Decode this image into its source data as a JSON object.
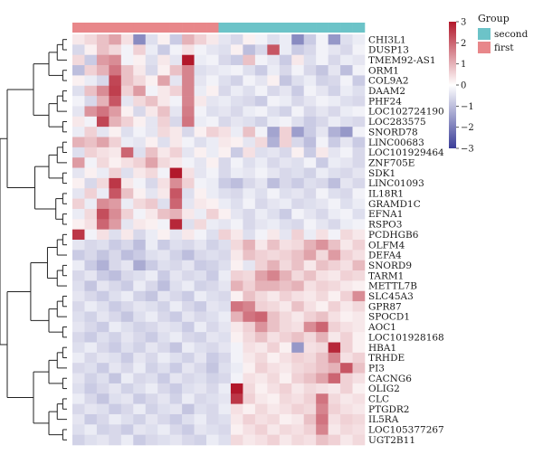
{
  "chart_data": {
    "type": "heatmap",
    "title": "",
    "legend_title": "Group",
    "groups": [
      {
        "name": "second",
        "color": "#6cc3c8"
      },
      {
        "name": "first",
        "color": "#e8878a"
      }
    ],
    "column_groups": [
      "first",
      "first",
      "first",
      "first",
      "first",
      "first",
      "first",
      "first",
      "first",
      "first",
      "first",
      "first",
      "second",
      "second",
      "second",
      "second",
      "second",
      "second",
      "second",
      "second",
      "second",
      "second",
      "second",
      "second"
    ],
    "scale": {
      "min": -3,
      "max": 3,
      "ticks": [
        3,
        2,
        1,
        0,
        -1,
        -2,
        -3
      ],
      "low_color": "#3a3d98",
      "mid_color": "#ffffff",
      "high_color": "#b2182b"
    },
    "rows": [
      "CHI3L1",
      "DUSP13",
      "TMEM92-AS1",
      "ORM1",
      "COL9A2",
      "DAAM2",
      "PHF24",
      "LOC102724190",
      "LOC283575",
      "SNORD78",
      "LINC00683",
      "LOC101929464",
      "ZNF705E",
      "SDK1",
      "LINC01093",
      "IL18R1",
      "GRAMD1C",
      "EFNA1",
      "RSPO3",
      "PCDHGB6",
      "OLFM4",
      "DEFA4",
      "SNORD9",
      "TARM1",
      "METTL7B",
      "SLC45A3",
      "GPR87",
      "SPOCD1",
      "AOC1",
      "LOC101928168",
      "HBA1",
      "TRHDE",
      "PI3",
      "CACNG6",
      "OLIG2",
      "CLC",
      "PTGDR2",
      "IL5RA",
      "LOC105377267",
      "UGT2B11"
    ],
    "values": [
      [
        0.3,
        0.5,
        0.8,
        1.2,
        0.4,
        -1.8,
        -0.5,
        0.2,
        -0.8,
        1.0,
        0.6,
        0.3,
        -0.4,
        -0.6,
        0.2,
        -0.2,
        -0.5,
        -0.3,
        -1.8,
        -0.8,
        -0.2,
        -1.6,
        -0.5,
        -0.3
      ],
      [
        -0.6,
        0.2,
        0.8,
        0.5,
        -0.2,
        0.6,
        -0.3,
        -0.8,
        -0.2,
        0.4,
        -0.2,
        -0.4,
        -0.5,
        0.2,
        -1.0,
        -0.6,
        2.2,
        -0.3,
        -0.8,
        -0.6,
        -0.2,
        -0.4,
        -0.6,
        -0.2
      ],
      [
        0.5,
        -0.8,
        1.3,
        1.5,
        -0.2,
        0.2,
        -0.5,
        0.3,
        -0.4,
        3.0,
        -0.3,
        -0.2,
        -0.6,
        -0.8,
        0.8,
        -0.2,
        -0.4,
        -0.8,
        0.3,
        -0.5,
        -0.2,
        -0.6,
        -0.3,
        -0.4
      ],
      [
        -1.0,
        0.6,
        1.0,
        1.8,
        0.8,
        0.3,
        -0.6,
        0.2,
        0.8,
        1.6,
        -0.5,
        -0.4,
        -0.3,
        -0.2,
        -0.5,
        -0.8,
        -0.3,
        -0.6,
        -0.2,
        -0.6,
        -0.9,
        -0.4,
        -1.0,
        -0.2
      ],
      [
        0.2,
        -0.3,
        -0.6,
        2.4,
        0.8,
        0.5,
        0.2,
        1.2,
        -0.4,
        1.6,
        -0.4,
        -0.2,
        -0.5,
        -0.7,
        -0.2,
        -0.4,
        0.2,
        -0.9,
        -0.5,
        -0.3,
        -0.7,
        -0.6,
        -0.2,
        -0.8
      ],
      [
        -0.5,
        0.8,
        1.5,
        2.5,
        0.6,
        1.3,
        -0.2,
        0.3,
        0.6,
        1.6,
        -0.3,
        0.2,
        -0.6,
        -0.3,
        -0.5,
        -0.2,
        -0.6,
        -0.4,
        -0.8,
        -0.2,
        -0.4,
        -0.7,
        -0.3,
        -0.5
      ],
      [
        -0.2,
        -0.6,
        1.0,
        2.2,
        -0.4,
        0.5,
        0.8,
        0.3,
        -0.2,
        1.6,
        0.3,
        -0.4,
        -0.3,
        -0.5,
        -0.6,
        -0.8,
        -0.2,
        -0.3,
        -0.6,
        -0.4,
        -0.2,
        -0.3,
        -0.5,
        -0.6
      ],
      [
        -0.4,
        1.4,
        1.8,
        1.3,
        0.2,
        -0.6,
        0.3,
        0.8,
        -0.4,
        1.7,
        -0.2,
        -0.5,
        -0.4,
        -0.6,
        -0.3,
        -0.2,
        -0.5,
        -0.7,
        -0.2,
        -0.6,
        -0.4,
        -0.6,
        -0.3,
        -0.2
      ],
      [
        0.3,
        -0.2,
        2.4,
        1.0,
        0.6,
        0.2,
        -0.4,
        0.6,
        -0.6,
        1.8,
        -0.3,
        -0.2,
        -0.6,
        -0.4,
        -0.5,
        -0.7,
        -0.3,
        -0.2,
        -0.5,
        -0.8,
        -0.6,
        -0.3,
        -0.5,
        -0.6
      ],
      [
        -0.3,
        0.6,
        -0.4,
        0.2,
        -0.5,
        -0.2,
        -0.4,
        0.5,
        0.3,
        -0.6,
        0.2,
        0.6,
        0.4,
        -0.3,
        0.8,
        -0.2,
        -1.4,
        0.6,
        -1.5,
        -0.8,
        -0.4,
        -1.2,
        -1.6,
        -0.2
      ],
      [
        1.0,
        0.8,
        1.2,
        0.6,
        -0.3,
        -0.4,
        0.2,
        -0.5,
        0.3,
        -0.2,
        -0.5,
        -0.3,
        0.3,
        0.2,
        -0.4,
        0.5,
        -1.2,
        0.6,
        -0.6,
        -1.0,
        -0.2,
        -0.8,
        -0.4,
        -0.8
      ],
      [
        -0.5,
        0.6,
        0.4,
        0.3,
        2.0,
        -0.5,
        0.8,
        0.3,
        0.6,
        -0.4,
        0.2,
        -0.3,
        0.2,
        -0.8,
        0.4,
        -0.5,
        -0.4,
        -0.6,
        0.2,
        -0.8,
        0.3,
        -0.4,
        -0.2,
        -0.6
      ],
      [
        1.3,
        -0.2,
        0.5,
        0.2,
        0.4,
        0.6,
        1.2,
        0.5,
        0.3,
        -0.2,
        -0.4,
        0.2,
        -0.6,
        -0.2,
        -0.5,
        -0.3,
        -0.6,
        -0.4,
        -0.5,
        -0.2,
        -0.8,
        -0.3,
        -0.4,
        -0.6
      ],
      [
        -0.4,
        0.2,
        -0.3,
        0.6,
        -0.5,
        0.3,
        0.5,
        -0.2,
        3.0,
        0.4,
        -0.4,
        -0.2,
        -0.6,
        -0.3,
        -0.4,
        -0.2,
        -0.4,
        -0.6,
        -0.5,
        -0.7,
        -0.3,
        -0.5,
        -0.6,
        -0.4
      ],
      [
        0.2,
        -0.6,
        0.5,
        2.6,
        0.3,
        -0.2,
        -0.6,
        0.4,
        1.5,
        0.6,
        -0.2,
        -0.3,
        -0.8,
        -1.0,
        -0.6,
        -0.4,
        -1.0,
        -0.6,
        -0.8,
        -0.5,
        -0.6,
        -1.0,
        -0.4,
        -0.6
      ],
      [
        -0.4,
        0.6,
        -0.3,
        2.2,
        0.8,
        0.2,
        -0.4,
        0.3,
        2.2,
        -0.5,
        0.2,
        -0.3,
        -0.5,
        -0.6,
        -0.3,
        -0.5,
        -0.2,
        -0.5,
        -0.4,
        -0.6,
        -0.2,
        -0.5,
        -0.6,
        -0.2
      ],
      [
        0.6,
        -0.3,
        1.5,
        1.3,
        -0.3,
        0.5,
        0.7,
        -0.5,
        2.0,
        -0.4,
        0.3,
        0.2,
        -0.3,
        -0.5,
        -0.2,
        -0.6,
        -0.4,
        -0.3,
        -0.6,
        -0.5,
        -0.4,
        -0.2,
        -0.5,
        -0.3
      ],
      [
        -0.3,
        0.5,
        2.3,
        1.5,
        0.6,
        -0.2,
        0.3,
        0.8,
        1.0,
        0.3,
        -0.3,
        0.6,
        0.2,
        -0.4,
        -0.6,
        -0.3,
        -0.5,
        -0.8,
        -0.2,
        -0.4,
        -0.6,
        -0.3,
        -0.2,
        -0.5
      ],
      [
        0.2,
        0.4,
        2.0,
        1.3,
        -0.4,
        0.3,
        0.2,
        -0.2,
        2.8,
        -0.5,
        0.5,
        -0.3,
        -0.4,
        -0.2,
        -0.6,
        -0.4,
        -0.3,
        -0.5,
        -0.6,
        -0.2,
        -0.4,
        -0.6,
        -0.3,
        -0.2
      ],
      [
        2.6,
        -0.2,
        0.4,
        -0.5,
        0.3,
        -0.6,
        -0.3,
        0.2,
        -0.4,
        0.3,
        -0.2,
        -0.5,
        0.6,
        0.3,
        -0.5,
        -0.2,
        0.3,
        -0.4,
        0.6,
        -0.3,
        0.4,
        -0.2,
        0.5,
        0.3
      ],
      [
        -0.4,
        -0.6,
        -0.5,
        -0.8,
        -0.6,
        -1.0,
        -0.3,
        -0.8,
        -0.5,
        -0.6,
        -0.4,
        -0.7,
        -0.5,
        0.5,
        1.0,
        0.3,
        0.8,
        0.4,
        0.5,
        1.0,
        1.4,
        0.8,
        0.3,
        0.6
      ],
      [
        -0.8,
        -0.6,
        -0.9,
        -0.6,
        -1.0,
        -0.8,
        -0.5,
        -0.4,
        -0.7,
        -1.0,
        -0.6,
        -0.5,
        -0.6,
        0.3,
        0.8,
        0.6,
        0.5,
        0.6,
        0.8,
        1.2,
        0.5,
        1.3,
        0.6,
        0.4
      ],
      [
        -0.3,
        -0.8,
        -1.2,
        -0.6,
        -0.4,
        -1.3,
        -0.8,
        -0.5,
        -0.6,
        -0.4,
        -0.8,
        -0.7,
        -0.5,
        0.2,
        -0.4,
        0.6,
        1.0,
        0.5,
        0.8,
        0.3,
        0.8,
        0.6,
        0.4,
        0.9
      ],
      [
        -0.6,
        -0.4,
        -0.8,
        -1.0,
        -0.6,
        -0.5,
        -0.3,
        -0.8,
        -0.4,
        -0.6,
        -0.5,
        -0.8,
        -0.3,
        0.6,
        0.5,
        1.2,
        1.6,
        1.0,
        0.5,
        0.8,
        0.4,
        0.3,
        0.6,
        0.5
      ],
      [
        -0.5,
        -0.9,
        -0.4,
        -0.6,
        -0.8,
        -0.3,
        -0.6,
        -1.0,
        -0.5,
        -0.3,
        -0.7,
        -0.6,
        -0.4,
        1.0,
        0.6,
        1.0,
        1.0,
        0.8,
        1.0,
        0.4,
        0.6,
        0.5,
        0.3,
        0.2
      ],
      [
        -0.4,
        -0.6,
        -0.8,
        -0.5,
        -0.3,
        -0.7,
        -0.9,
        -0.4,
        -0.6,
        -0.8,
        -0.3,
        -0.5,
        -0.6,
        0.2,
        0.8,
        0.5,
        0.3,
        0.6,
        0.4,
        0.3,
        0.5,
        0.2,
        0.6,
        1.5
      ],
      [
        -0.6,
        -0.3,
        -0.5,
        -0.8,
        -0.6,
        -0.4,
        -0.5,
        -0.7,
        -0.3,
        -0.6,
        -0.8,
        -0.4,
        -0.5,
        1.8,
        1.6,
        0.6,
        0.5,
        0.3,
        0.8,
        0.4,
        0.2,
        0.6,
        0.3,
        0.5
      ],
      [
        -0.5,
        -0.7,
        -0.4,
        -0.6,
        -0.9,
        -0.5,
        -0.3,
        -0.6,
        -0.8,
        -0.4,
        -0.6,
        -0.5,
        -0.3,
        1.0,
        1.8,
        2.0,
        0.8,
        0.5,
        0.3,
        0.6,
        0.8,
        0.4,
        0.2,
        0.3
      ],
      [
        -0.4,
        -0.6,
        -0.8,
        -0.3,
        -0.5,
        -0.7,
        -0.6,
        -0.4,
        -0.5,
        -0.8,
        -0.3,
        -0.6,
        -0.4,
        0.3,
        0.6,
        1.4,
        0.8,
        0.5,
        0.4,
        1.5,
        2.0,
        0.6,
        0.4,
        0.3
      ],
      [
        -0.6,
        -0.8,
        -0.5,
        -0.7,
        -0.4,
        -0.6,
        -0.8,
        -0.5,
        -0.3,
        -0.6,
        -0.7,
        -0.4,
        -0.5,
        0.2,
        0.5,
        0.8,
        0.4,
        0.6,
        0.8,
        0.5,
        1.0,
        0.3,
        0.6,
        0.2
      ],
      [
        -0.5,
        -0.3,
        -0.6,
        -0.8,
        -0.5,
        -0.7,
        -0.4,
        -0.6,
        -0.9,
        -0.3,
        -0.5,
        -0.6,
        -0.4,
        -0.2,
        0.4,
        0.3,
        0.6,
        0.2,
        -1.6,
        0.4,
        0.5,
        2.8,
        0.6,
        0.2
      ],
      [
        -0.3,
        -0.6,
        -0.4,
        -0.5,
        -0.8,
        -0.4,
        -0.6,
        -0.3,
        -0.5,
        -0.7,
        -0.4,
        -0.8,
        -0.6,
        -0.2,
        0.3,
        0.5,
        0.2,
        0.4,
        0.6,
        0.5,
        0.8,
        1.6,
        0.4,
        0.6
      ],
      [
        -0.6,
        -0.5,
        -0.8,
        -0.4,
        -0.6,
        -0.3,
        -0.7,
        -0.5,
        -0.8,
        -0.4,
        -0.6,
        -0.9,
        -0.5,
        -0.3,
        0.2,
        0.6,
        0.4,
        0.3,
        0.5,
        0.6,
        0.8,
        1.0,
        2.2,
        0.8
      ],
      [
        -0.4,
        -0.7,
        -0.5,
        -0.9,
        -0.3,
        -0.6,
        -0.5,
        -0.8,
        -0.4,
        -0.6,
        -0.5,
        -0.7,
        -0.6,
        -0.2,
        0.4,
        0.3,
        0.5,
        0.2,
        0.6,
        0.8,
        1.2,
        2.0,
        0.6,
        0.4
      ],
      [
        -0.5,
        -0.8,
        -0.6,
        -0.4,
        -0.7,
        -0.5,
        -0.3,
        -0.6,
        -0.8,
        -0.5,
        -0.4,
        -0.6,
        -0.3,
        3.0,
        0.5,
        0.2,
        0.4,
        0.6,
        0.3,
        0.5,
        0.4,
        0.3,
        0.6,
        0.2
      ],
      [
        -0.3,
        -0.6,
        -0.9,
        -0.5,
        -0.4,
        -0.8,
        -0.6,
        -0.4,
        -0.7,
        -0.3,
        -0.6,
        -0.5,
        -0.4,
        2.6,
        0.6,
        0.3,
        0.2,
        0.5,
        0.4,
        0.6,
        1.8,
        0.5,
        0.3,
        0.4
      ],
      [
        -0.6,
        -0.4,
        -0.5,
        -0.8,
        -0.6,
        -0.3,
        -0.7,
        -0.5,
        -0.4,
        -0.9,
        -0.5,
        -0.6,
        -0.3,
        0.4,
        0.2,
        0.5,
        0.3,
        0.4,
        0.6,
        0.5,
        1.6,
        0.6,
        0.4,
        0.3
      ],
      [
        -0.4,
        -0.8,
        -0.6,
        -0.3,
        -0.5,
        -0.7,
        -0.4,
        -0.6,
        -0.8,
        -0.5,
        -0.3,
        -0.6,
        -0.5,
        0.3,
        0.6,
        0.4,
        0.5,
        0.2,
        0.3,
        0.8,
        1.8,
        0.4,
        0.6,
        0.5
      ],
      [
        -0.5,
        -0.3,
        -0.7,
        -0.6,
        -0.8,
        -0.4,
        -0.5,
        -0.3,
        -0.6,
        -0.8,
        -0.4,
        -0.5,
        -0.6,
        0.2,
        0.4,
        0.6,
        0.3,
        0.5,
        0.4,
        0.6,
        1.6,
        0.3,
        0.5,
        0.4
      ],
      [
        -0.7,
        -0.5,
        -0.4,
        -0.6,
        -0.3,
        -0.8,
        -0.6,
        -0.5,
        -0.4,
        -0.6,
        -0.7,
        -0.3,
        -0.5,
        0.5,
        0.3,
        0.4,
        0.6,
        0.3,
        0.5,
        0.4,
        0.8,
        0.6,
        0.3,
        0.5
      ]
    ]
  }
}
